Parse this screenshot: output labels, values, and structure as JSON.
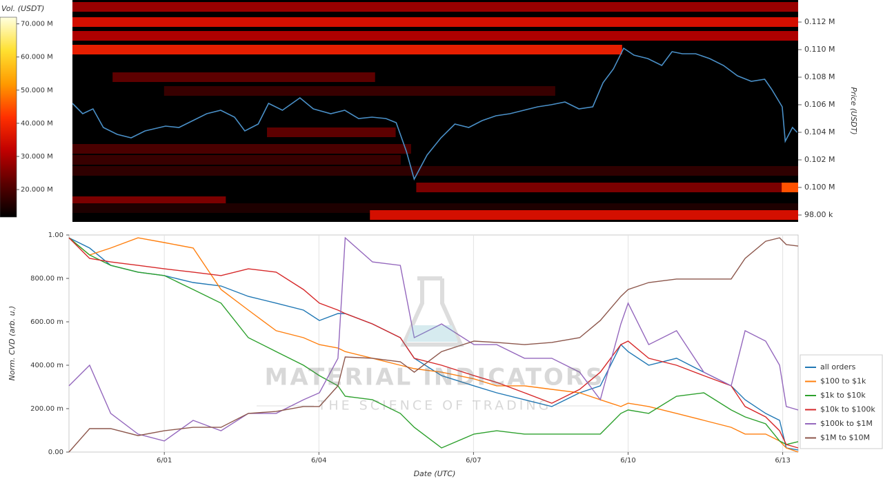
{
  "chart_data": [
    {
      "type": "heatmap",
      "colorbar_title": "Vol. (USDT)",
      "y_label": "Price (USDT)",
      "xlim": [
        -0.78,
        13.32
      ],
      "ylim": [
        97500,
        113600
      ],
      "yticks": [
        {
          "value": 98000,
          "label": "98.00 k"
        },
        {
          "value": 100000,
          "label": "0.100 M"
        },
        {
          "value": 102000,
          "label": "0.102 M"
        },
        {
          "value": 104000,
          "label": "0.104 M"
        },
        {
          "value": 106000,
          "label": "0.106 M"
        },
        {
          "value": 108000,
          "label": "0.108 M"
        },
        {
          "value": 110000,
          "label": "0.110 M"
        },
        {
          "value": 112000,
          "label": "0.112 M"
        }
      ],
      "clim": [
        11700000,
        72000000
      ],
      "cticks": [
        {
          "value": 20000000,
          "label": "20.000 M"
        },
        {
          "value": 30000000,
          "label": "30.000 M"
        },
        {
          "value": 40000000,
          "label": "40.000 M"
        },
        {
          "value": 50000000,
          "label": "50.000 M"
        },
        {
          "value": 60000000,
          "label": "60.000 M"
        },
        {
          "value": 70000000,
          "label": "70.000 M"
        }
      ],
      "colormap": [
        "#000000",
        "#5a0000",
        "#c00000",
        "#ff3000",
        "#ff9a00",
        "#ffe030",
        "#ffffe0"
      ],
      "bands": [
        {
          "price": 113100,
          "start": -0.78,
          "end": 13.32,
          "volume": 28000000
        },
        {
          "price": 112000,
          "start": -0.78,
          "end": 13.32,
          "volume": 35000000
        },
        {
          "price": 111000,
          "start": -0.78,
          "end": 13.32,
          "volume": 30000000
        },
        {
          "price": 110000,
          "start": -0.78,
          "end": 9.9,
          "volume": 38000000
        },
        {
          "price": 108000,
          "start": 0,
          "end": 5.1,
          "volume": 22000000
        },
        {
          "price": 107000,
          "start": 1,
          "end": 8.6,
          "volume": 18000000
        },
        {
          "price": 104000,
          "start": 3,
          "end": 5.5,
          "volume": 22000000
        },
        {
          "price": 102800,
          "start": -0.78,
          "end": 5.8,
          "volume": 20000000
        },
        {
          "price": 102000,
          "start": -0.78,
          "end": 5.6,
          "volume": 18000000
        },
        {
          "price": 101200,
          "start": -0.78,
          "end": 13.32,
          "volume": 17000000
        },
        {
          "price": 100000,
          "start": 5.9,
          "end": 13.32,
          "volume": 25000000
        },
        {
          "price": 100000,
          "start": 13,
          "end": 13.32,
          "volume": 45000000
        },
        {
          "price": 99000,
          "start": -0.78,
          "end": 2.2,
          "volume": 25000000
        },
        {
          "price": 98500,
          "start": -0.78,
          "end": 13.32,
          "volume": 15000000
        },
        {
          "price": 98000,
          "start": 5,
          "end": 13.32,
          "volume": 35000000
        }
      ],
      "price_line": {
        "color": "#4a90c8",
        "x": [
          -0.78,
          -0.58,
          -0.38,
          -0.18,
          0.09,
          0.36,
          0.63,
          1.03,
          1.29,
          1.56,
          1.83,
          2.1,
          2.37,
          2.57,
          2.83,
          3.03,
          3.3,
          3.64,
          3.9,
          4.24,
          4.51,
          4.78,
          5.04,
          5.31,
          5.51,
          5.71,
          5.86,
          6.11,
          6.38,
          6.65,
          6.92,
          7.18,
          7.45,
          7.72,
          7.99,
          8.26,
          8.52,
          8.79,
          9.06,
          9.33,
          9.53,
          9.73,
          9.93,
          10.13,
          10.4,
          10.67,
          10.87,
          11.07,
          11.33,
          11.6,
          11.87,
          12.14,
          12.41,
          12.67,
          12.81,
          13.01,
          13.07,
          13.21,
          13.3
        ],
        "values": [
          106100,
          105350,
          105700,
          104350,
          103850,
          103600,
          104100,
          104450,
          104350,
          104850,
          105350,
          105600,
          105100,
          104100,
          104600,
          106100,
          105600,
          106500,
          105700,
          105350,
          105600,
          105000,
          105100,
          105000,
          104700,
          102600,
          100600,
          102350,
          103600,
          104600,
          104350,
          104850,
          105200,
          105350,
          105600,
          105850,
          106000,
          106200,
          105700,
          105850,
          107600,
          108600,
          110100,
          109600,
          109350,
          108850,
          109850,
          109700,
          109700,
          109350,
          108850,
          108100,
          107700,
          107850,
          107100,
          105850,
          103350,
          104350,
          104000
        ]
      }
    },
    {
      "type": "line",
      "y_label": "Norm. CVD (arb. u.)",
      "x_label": "Date (UTC)",
      "xlim": [
        -0.85,
        13.3
      ],
      "xticks": [
        {
          "value": 1,
          "label": "6/01"
        },
        {
          "value": 4,
          "label": "6/04"
        },
        {
          "value": 7,
          "label": "6/07"
        },
        {
          "value": 10,
          "label": "6/10"
        },
        {
          "value": 13,
          "label": "6/13"
        }
      ],
      "ylim": [
        0,
        1
      ],
      "yticks": [
        {
          "value": 0,
          "label": "0.00"
        },
        {
          "value": 0.2,
          "label": "200.00 m"
        },
        {
          "value": 0.4,
          "label": "400.00 m"
        },
        {
          "value": 0.6,
          "label": "600.00 m"
        },
        {
          "value": 0.8,
          "label": "800.00 m"
        },
        {
          "value": 1,
          "label": "1.00"
        }
      ],
      "grid": "x",
      "legend": "right",
      "x": [
        -0.85,
        -0.45,
        -0.04,
        0.49,
        1,
        1.56,
        2.1,
        2.63,
        3.17,
        3.7,
        4.01,
        4.37,
        4.51,
        5.04,
        5.58,
        5.85,
        6.38,
        7.01,
        7.45,
        7.99,
        8.52,
        9.06,
        9.46,
        9.86,
        10,
        10.4,
        10.94,
        11.47,
        12,
        12.27,
        12.67,
        12.94,
        13.07,
        13.3
      ],
      "series": [
        {
          "name": "all orders",
          "color": "#1f77b4",
          "values": [
            0.987,
            0.94,
            0.86,
            0.829,
            0.813,
            0.781,
            0.765,
            0.717,
            0.686,
            0.654,
            0.606,
            0.638,
            0.638,
            0.59,
            0.527,
            0.432,
            0.352,
            0.305,
            0.273,
            0.241,
            0.21,
            0.273,
            0.305,
            0.495,
            0.463,
            0.4,
            0.432,
            0.368,
            0.305,
            0.241,
            0.178,
            0.146,
            0.019,
            0.01
          ]
        },
        {
          "name": "$100 to $1k",
          "color": "#ff7f0e",
          "values": [
            0.987,
            0.908,
            0.94,
            0.987,
            0.965,
            0.94,
            0.749,
            0.654,
            0.559,
            0.527,
            0.495,
            0.479,
            0.463,
            0.432,
            0.4,
            0.384,
            0.368,
            0.337,
            0.305,
            0.305,
            0.289,
            0.273,
            0.241,
            0.21,
            0.225,
            0.21,
            0.178,
            0.146,
            0.114,
            0.083,
            0.083,
            0.051,
            0.019,
            0
          ]
        },
        {
          "name": "$1k to $10k",
          "color": "#2ca02c",
          "values": [
            0.987,
            0.908,
            0.86,
            0.829,
            0.813,
            0.749,
            0.686,
            0.527,
            0.463,
            0.4,
            0.352,
            0.305,
            0.257,
            0.241,
            0.178,
            0.114,
            0.019,
            0.083,
            0.098,
            0.083,
            0.083,
            0.083,
            0.083,
            0.178,
            0.194,
            0.178,
            0.257,
            0.273,
            0.194,
            0.162,
            0.13,
            0.051,
            0.035,
            0.048
          ]
        },
        {
          "name": "$10k to $100k",
          "color": "#d62728",
          "values": [
            0.987,
            0.892,
            0.876,
            0.86,
            0.844,
            0.829,
            0.813,
            0.844,
            0.829,
            0.749,
            0.686,
            0.654,
            0.638,
            0.59,
            0.527,
            0.432,
            0.4,
            0.352,
            0.321,
            0.273,
            0.225,
            0.289,
            0.368,
            0.495,
            0.511,
            0.432,
            0.4,
            0.352,
            0.305,
            0.21,
            0.162,
            0.098,
            0.035,
            0.019
          ]
        },
        {
          "name": "$100k to $1M",
          "color": "#9467bd",
          "values": [
            0.305,
            0.4,
            0.178,
            0.083,
            0.051,
            0.146,
            0.098,
            0.178,
            0.178,
            0.241,
            0.273,
            0.432,
            0.987,
            0.876,
            0.86,
            0.527,
            0.59,
            0.495,
            0.495,
            0.432,
            0.432,
            0.368,
            0.241,
            0.59,
            0.686,
            0.495,
            0.559,
            0.368,
            0.305,
            0.559,
            0.511,
            0.4,
            0.21,
            0.194
          ]
        },
        {
          "name": "$1M to $10M",
          "color": "#8c564b",
          "values": [
            0,
            0.108,
            0.108,
            0.076,
            0.098,
            0.114,
            0.114,
            0.178,
            0.187,
            0.21,
            0.21,
            0.305,
            0.438,
            0.432,
            0.416,
            0.368,
            0.463,
            0.511,
            0.505,
            0.495,
            0.505,
            0.527,
            0.606,
            0.717,
            0.749,
            0.781,
            0.797,
            0.797,
            0.797,
            0.892,
            0.971,
            0.987,
            0.956,
            0.949
          ]
        }
      ]
    }
  ],
  "watermark": {
    "title": "MATERIAL INDICATORS",
    "subtitle": "THE SCIENCE OF TRADING"
  }
}
